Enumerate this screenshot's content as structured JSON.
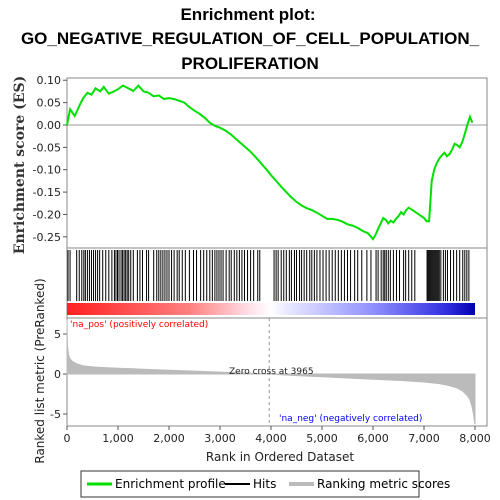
{
  "title_lines": [
    "Enrichment plot:",
    "GO_NEGATIVE_REGULATION_OF_CELL_POPULATION_",
    "PROLIFERATION"
  ],
  "colors": {
    "es_line": "#00e000",
    "hits": "#000000",
    "metric_fill": "#bbbbbb",
    "pos_label": "#ff0000",
    "neg_label": "#0000ff",
    "zero_line": "#999999"
  },
  "chart_data": [
    {
      "type": "line",
      "name": "enrichment-profile",
      "ylabel": "Enrichment score (ES)",
      "xlim": [
        0,
        8000
      ],
      "ylim": [
        -0.275,
        0.105
      ],
      "yticks": [
        0.1,
        0.05,
        0.0,
        -0.05,
        -0.1,
        -0.15,
        -0.2,
        -0.25
      ],
      "ytick_labels": [
        "0.10",
        "0.05",
        "0.00",
        "-0.05",
        "-0.10",
        "-0.15",
        "-0.20",
        "-0.25"
      ],
      "x": [
        0,
        60,
        150,
        250,
        320,
        400,
        480,
        560,
        650,
        720,
        820,
        900,
        1000,
        1100,
        1200,
        1300,
        1400,
        1500,
        1600,
        1700,
        1800,
        1900,
        2000,
        2100,
        2200,
        2300,
        2400,
        2500,
        2600,
        2700,
        2800,
        2900,
        3000,
        3100,
        3200,
        3300,
        3400,
        3500,
        3600,
        3700,
        3800,
        3900,
        4000,
        4100,
        4200,
        4300,
        4400,
        4500,
        4600,
        4700,
        4800,
        4900,
        5000,
        5100,
        5200,
        5300,
        5400,
        5500,
        5600,
        5700,
        5800,
        5900,
        6000,
        6050,
        6100,
        6150,
        6200,
        6250,
        6300,
        6350,
        6400,
        6450,
        6500,
        6550,
        6600,
        6650,
        6700,
        6800,
        6900,
        7000,
        7050,
        7100,
        7150,
        7200,
        7250,
        7300,
        7350,
        7400,
        7450,
        7500,
        7550,
        7600,
        7650,
        7700,
        7750,
        7800,
        7850,
        7900,
        7950
      ],
      "y": [
        0.0,
        0.035,
        0.02,
        0.045,
        0.06,
        0.072,
        0.068,
        0.082,
        0.075,
        0.085,
        0.07,
        0.074,
        0.08,
        0.088,
        0.082,
        0.076,
        0.088,
        0.075,
        0.072,
        0.064,
        0.066,
        0.058,
        0.06,
        0.058,
        0.054,
        0.05,
        0.04,
        0.032,
        0.025,
        0.016,
        0.005,
        -0.002,
        -0.006,
        -0.012,
        -0.02,
        -0.03,
        -0.04,
        -0.05,
        -0.06,
        -0.072,
        -0.085,
        -0.098,
        -0.112,
        -0.125,
        -0.138,
        -0.15,
        -0.162,
        -0.172,
        -0.18,
        -0.186,
        -0.19,
        -0.196,
        -0.203,
        -0.21,
        -0.21,
        -0.212,
        -0.216,
        -0.222,
        -0.225,
        -0.23,
        -0.237,
        -0.242,
        -0.255,
        -0.245,
        -0.232,
        -0.22,
        -0.208,
        -0.212,
        -0.22,
        -0.214,
        -0.218,
        -0.21,
        -0.204,
        -0.195,
        -0.2,
        -0.19,
        -0.185,
        -0.192,
        -0.2,
        -0.208,
        -0.215,
        -0.215,
        -0.125,
        -0.1,
        -0.085,
        -0.075,
        -0.068,
        -0.062,
        -0.07,
        -0.065,
        -0.055,
        -0.042,
        -0.045,
        -0.05,
        -0.038,
        -0.02,
        0.0,
        0.018,
        0.005
      ]
    },
    {
      "type": "scatter",
      "name": "hits",
      "hits_x": [
        20,
        60,
        190,
        240,
        290,
        330,
        360,
        400,
        440,
        480,
        520,
        560,
        600,
        640,
        700,
        760,
        820,
        880,
        930,
        960,
        990,
        1020,
        1060,
        1090,
        1120,
        1150,
        1180,
        1210,
        1250,
        1300,
        1380,
        1430,
        1480,
        1560,
        1600,
        1700,
        1760,
        1800,
        1840,
        1880,
        1920,
        1960,
        2000,
        2050,
        2100,
        2160,
        2200,
        2260,
        2320,
        2400,
        2480,
        2540,
        2620,
        2680,
        2740,
        2800,
        2850,
        2900,
        2940,
        2980,
        3020,
        3060,
        3120,
        3180,
        3220,
        3280,
        3330,
        3380,
        3430,
        3480,
        3540,
        3600,
        3660,
        3740,
        3780,
        4060,
        4100,
        4140,
        4200,
        4250,
        4300,
        4360,
        4400,
        4460,
        4500,
        4560,
        4600,
        4650,
        4700,
        4760,
        4800,
        4850,
        4900,
        4960,
        5020,
        5080,
        5140,
        5200,
        5260,
        5320,
        5380,
        5440,
        5500,
        5560,
        5640,
        5700,
        5780,
        5880,
        5960,
        6060,
        6100,
        6160,
        6200,
        6230,
        6260,
        6300,
        6340,
        6400,
        6460,
        6520,
        6600,
        6640,
        6700,
        6760,
        6820,
        7060,
        7080,
        7100,
        7120,
        7140,
        7160,
        7180,
        7200,
        7220,
        7240,
        7260,
        7280,
        7300,
        7330,
        7380,
        7420,
        7460,
        7520,
        7580,
        7640,
        7700,
        7760,
        7800,
        7840,
        7880
      ]
    },
    {
      "type": "area",
      "name": "ranked-list-metric",
      "xlabel": "Rank in Ordered Dataset",
      "ylabel": "Ranked list metric (PreRanked)",
      "xlim": [
        0,
        8000
      ],
      "ylim": [
        -6.5,
        7.0
      ],
      "yticks": [
        5,
        0,
        -5
      ],
      "ytick_labels": [
        "5",
        "0",
        "-5"
      ],
      "xticks": [
        0,
        1000,
        2000,
        3000,
        4000,
        5000,
        6000,
        7000,
        8000
      ],
      "xtick_labels": [
        "0",
        "1,000",
        "2,000",
        "3,000",
        "4,000",
        "5,000",
        "6,000",
        "7,000",
        "8,000"
      ],
      "x": [
        0,
        10,
        30,
        60,
        100,
        150,
        200,
        300,
        400,
        600,
        800,
        1000,
        1500,
        2000,
        2500,
        3000,
        3500,
        3965,
        4500,
        5000,
        5500,
        6000,
        6500,
        7000,
        7300,
        7500,
        7650,
        7750,
        7850,
        7900,
        7940,
        7970,
        7990,
        8000
      ],
      "y": [
        6.8,
        3.5,
        2.4,
        1.9,
        1.6,
        1.4,
        1.25,
        1.05,
        0.95,
        0.85,
        0.78,
        0.72,
        0.6,
        0.48,
        0.36,
        0.24,
        0.12,
        0.0,
        -0.2,
        -0.35,
        -0.5,
        -0.65,
        -0.8,
        -1.0,
        -1.2,
        -1.45,
        -1.75,
        -2.1,
        -2.7,
        -3.2,
        -4.0,
        -5.0,
        -6.0,
        -6.3
      ],
      "zero_cross_rank": 3965,
      "zero_cross_text": "Zero cross at 3965",
      "pos_text": "'na_pos' (positively correlated)",
      "neg_text": "'na_neg' (negatively correlated)"
    }
  ],
  "legend": {
    "items": [
      {
        "label": "Enrichment profile",
        "color": "#00e000"
      },
      {
        "label": "Hits",
        "color": "#000000"
      },
      {
        "label": "Ranking metric scores",
        "color": "#bbbbbb"
      }
    ]
  }
}
